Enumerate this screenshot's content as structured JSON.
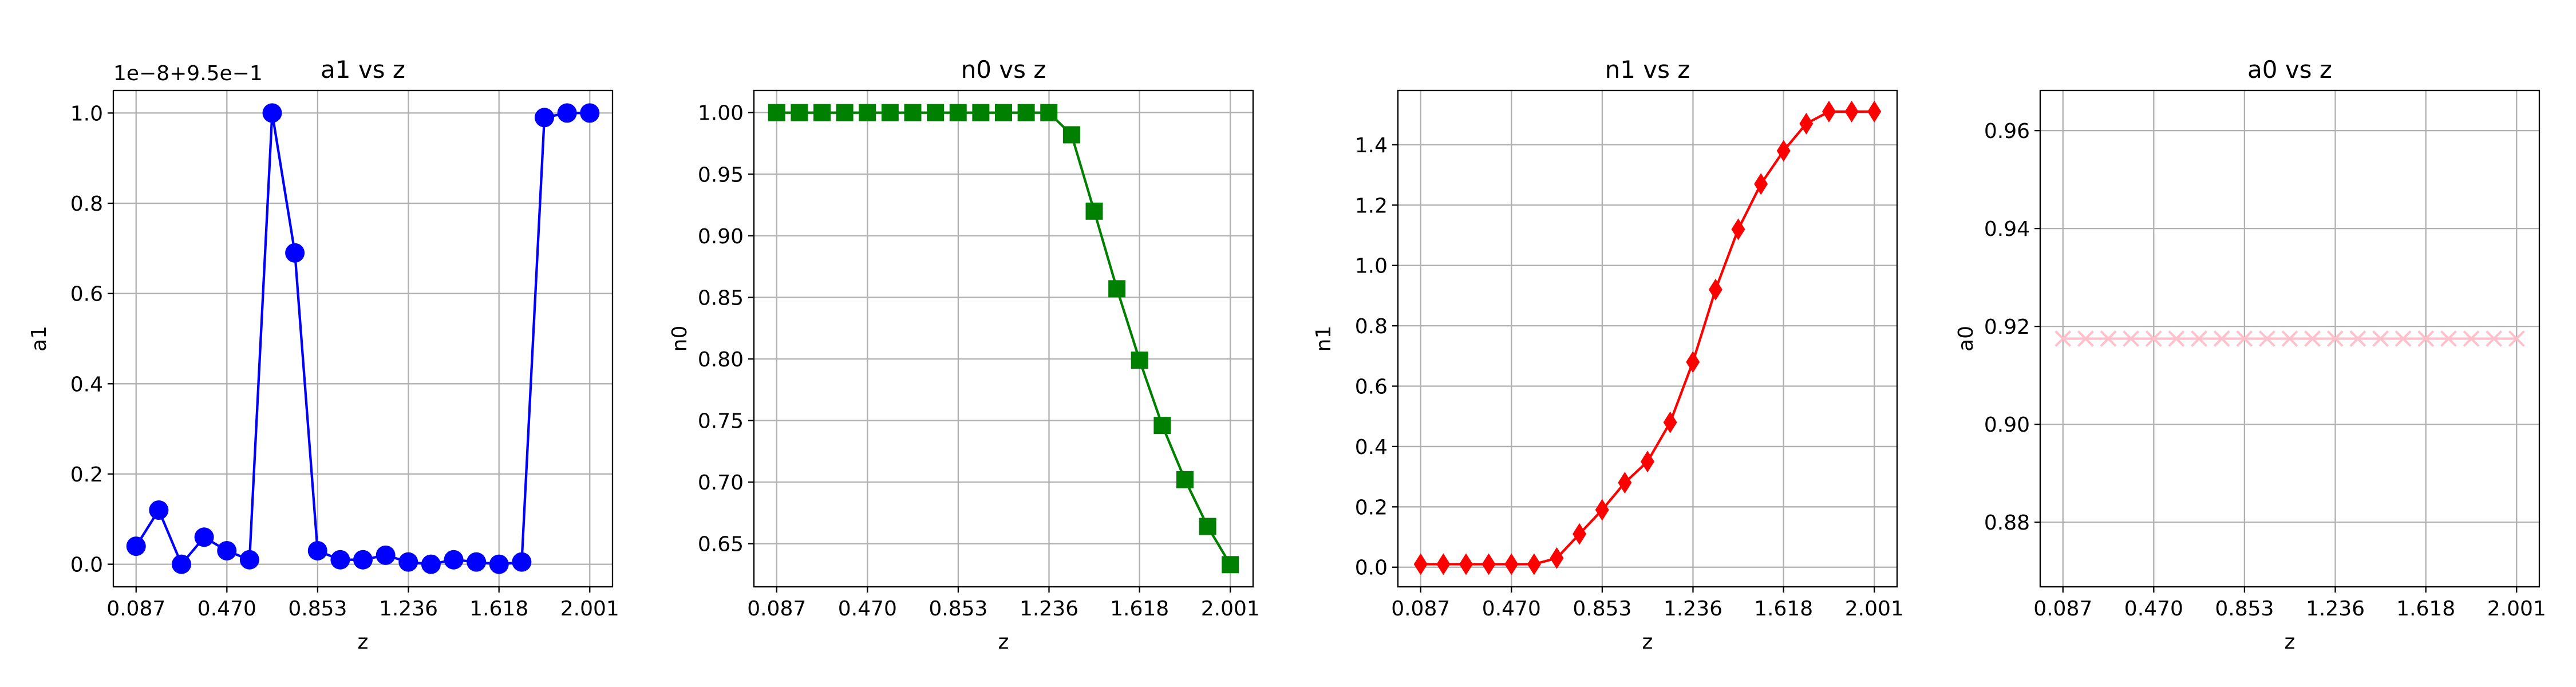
{
  "chart_data": [
    {
      "type": "line",
      "title": "a1 vs z",
      "xlabel": "z",
      "ylabel": "a1",
      "y_offset_label": "1e−8+9.5e−1",
      "marker": "circle",
      "grid": true,
      "x": [
        0.087,
        0.1827,
        0.2784,
        0.3741,
        0.4698,
        0.5655,
        0.6612,
        0.7569,
        0.8526,
        0.9483,
        1.044,
        1.1397,
        1.2354,
        1.3311,
        1.4268,
        1.5225,
        1.6182,
        1.7139,
        1.8096,
        1.9053,
        2.001
      ],
      "series": [
        {
          "name": "a1",
          "color": "#0000ff",
          "values": [
            0.04,
            0.12,
            0.0,
            0.06,
            0.03,
            0.01,
            1.0,
            0.69,
            0.03,
            0.01,
            0.01,
            0.02,
            0.005,
            0.0,
            0.01,
            0.005,
            0.0,
            0.005,
            0.99,
            1.0,
            1.0
          ]
        }
      ],
      "xlim": [
        -0.009,
        2.097
      ],
      "xticks": [
        0.087,
        {
          "value": 0.47,
          "label": "0.470"
        },
        0.853,
        1.236,
        1.618,
        2.001
      ],
      "ylim": [
        -0.05,
        1.05
      ],
      "yticks": [
        {
          "value": 0,
          "label": "0.0"
        },
        0.2,
        0.4,
        0.6,
        0.8,
        {
          "value": 1,
          "label": "1.0"
        }
      ]
    },
    {
      "type": "line",
      "title": "n0 vs z",
      "xlabel": "z",
      "ylabel": "n0",
      "marker": "square",
      "grid": true,
      "x": [
        0.087,
        0.1827,
        0.2784,
        0.3741,
        0.4698,
        0.5655,
        0.6612,
        0.7569,
        0.8526,
        0.9483,
        1.044,
        1.1397,
        1.2354,
        1.3311,
        1.4268,
        1.5225,
        1.6182,
        1.7139,
        1.8096,
        1.9053,
        2.001
      ],
      "series": [
        {
          "name": "n0",
          "color": "#008000",
          "values": [
            1.0,
            1.0,
            1.0,
            1.0,
            1.0,
            1.0,
            1.0,
            1.0,
            1.0,
            1.0,
            1.0,
            1.0,
            1.0,
            0.982,
            0.92,
            0.857,
            0.799,
            0.746,
            0.702,
            0.664,
            0.633
          ]
        }
      ],
      "xlim": [
        -0.009,
        2.097
      ],
      "xticks": [
        0.087,
        {
          "value": 0.47,
          "label": "0.470"
        },
        0.853,
        1.236,
        1.618,
        2.001
      ],
      "ylim": [
        0.615,
        1.018
      ],
      "yticks": [
        0.65,
        {
          "value": 0.7,
          "label": "0.70"
        },
        0.75,
        {
          "value": 0.8,
          "label": "0.80"
        },
        0.85,
        {
          "value": 0.9,
          "label": "0.90"
        },
        0.95,
        {
          "value": 1,
          "label": "1.00"
        }
      ]
    },
    {
      "type": "line",
      "title": "n1 vs z",
      "xlabel": "z",
      "ylabel": "n1",
      "marker": "diamond",
      "grid": true,
      "x": [
        0.087,
        0.1827,
        0.2784,
        0.3741,
        0.4698,
        0.5655,
        0.6612,
        0.7569,
        0.8526,
        0.9483,
        1.044,
        1.1397,
        1.2354,
        1.3311,
        1.4268,
        1.5225,
        1.6182,
        1.7139,
        1.8096,
        1.9053,
        2.001
      ],
      "series": [
        {
          "name": "n1",
          "color": "#ff0000",
          "values": [
            0.01,
            0.01,
            0.01,
            0.01,
            0.01,
            0.01,
            0.03,
            0.11,
            0.19,
            0.28,
            0.35,
            0.48,
            0.68,
            0.92,
            1.12,
            1.27,
            1.38,
            1.47,
            1.51,
            1.51,
            1.51
          ]
        }
      ],
      "xlim": [
        -0.009,
        2.097
      ],
      "xticks": [
        0.087,
        {
          "value": 0.47,
          "label": "0.470"
        },
        0.853,
        1.236,
        1.618,
        2.001
      ],
      "ylim": [
        -0.065,
        1.58
      ],
      "yticks": [
        {
          "value": 0,
          "label": "0.0"
        },
        0.2,
        0.4,
        0.6,
        0.8,
        {
          "value": 1,
          "label": "1.0"
        },
        1.2,
        1.4
      ]
    },
    {
      "type": "line",
      "title": "a0 vs z",
      "xlabel": "z",
      "ylabel": "a0",
      "marker": "x",
      "grid": true,
      "x": [
        0.087,
        0.1827,
        0.2784,
        0.3741,
        0.4698,
        0.5655,
        0.6612,
        0.7569,
        0.8526,
        0.9483,
        1.044,
        1.1397,
        1.2354,
        1.3311,
        1.4268,
        1.5225,
        1.6182,
        1.7139,
        1.8096,
        1.9053,
        2.001
      ],
      "series": [
        {
          "name": "a0",
          "color": "#ffc0cb",
          "values": [
            0.9175,
            0.9175,
            0.9175,
            0.9175,
            0.9175,
            0.9175,
            0.9175,
            0.9175,
            0.9175,
            0.9175,
            0.9175,
            0.9175,
            0.9175,
            0.9175,
            0.9175,
            0.9175,
            0.9175,
            0.9175,
            0.9175,
            0.9175,
            0.9175
          ]
        }
      ],
      "xlim": [
        -0.009,
        2.097
      ],
      "xticks": [
        0.087,
        {
          "value": 0.47,
          "label": "0.470"
        },
        0.853,
        1.236,
        1.618,
        2.001
      ],
      "ylim": [
        0.8668,
        0.9682
      ],
      "yticks": [
        0.88,
        {
          "value": 0.9,
          "label": "0.90"
        },
        0.92,
        0.94,
        0.96
      ]
    }
  ]
}
